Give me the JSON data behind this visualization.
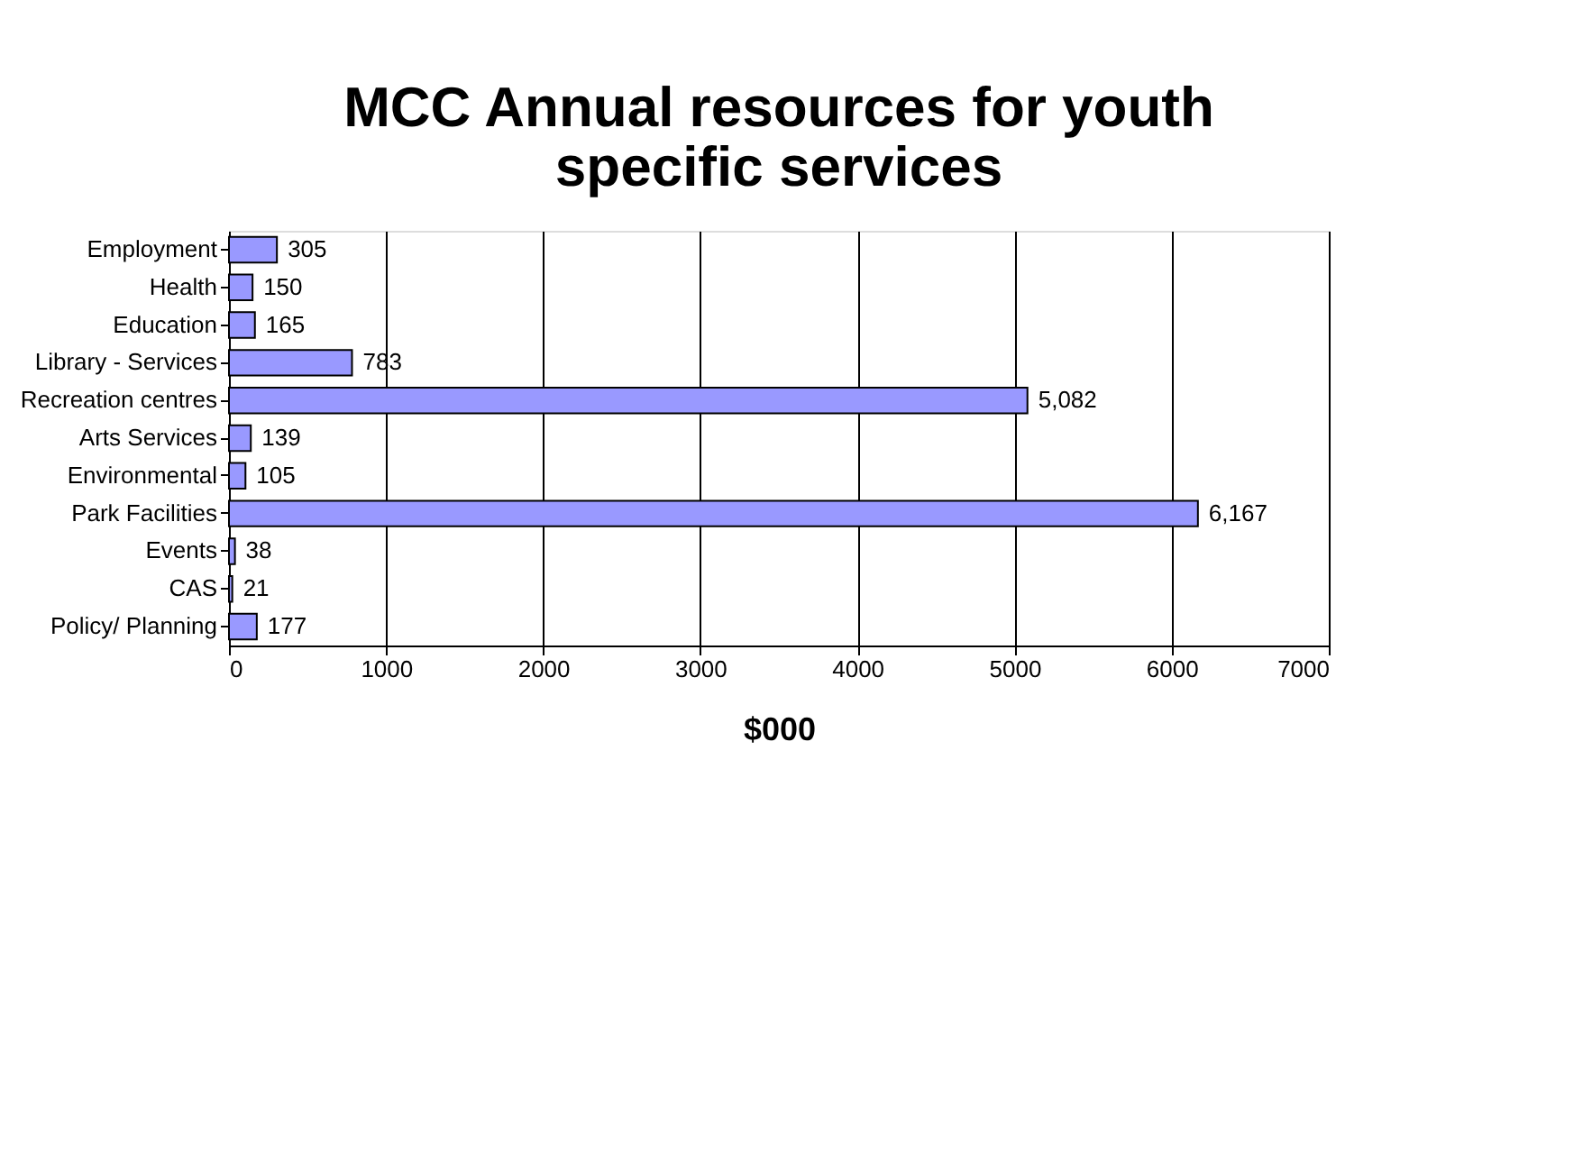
{
  "chart_data": {
    "type": "bar",
    "orientation": "horizontal",
    "title": "MCC Annual resources for youth specific services",
    "xlabel": "$000",
    "categories": [
      "Employment",
      "Health",
      "Education",
      "Library - Services",
      "Recreation centres",
      "Arts Services",
      "Environmental",
      "Park Facilities",
      "Events",
      "CAS",
      "Policy/ Planning"
    ],
    "values": [
      305,
      150,
      165,
      783,
      5082,
      139,
      105,
      6167,
      38,
      21,
      177
    ],
    "value_labels": [
      "305",
      "150",
      "165",
      "783",
      "5,082",
      "139",
      "105",
      "6,167",
      "38",
      "21",
      "177"
    ],
    "color": "#9999ff",
    "xlim": [
      0,
      7000
    ],
    "xticks": [
      0,
      1000,
      2000,
      3000,
      4000,
      5000,
      6000,
      7000
    ],
    "grid": "x"
  }
}
